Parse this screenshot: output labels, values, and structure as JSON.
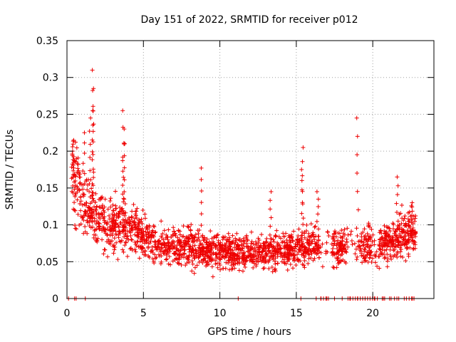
{
  "chart_data": {
    "type": "scatter",
    "title": "Day 151 of 2022, SRMTID for receiver p012",
    "xlabel": "GPS time / hours",
    "ylabel": "SRMTID / TECUs",
    "xlim": [
      0,
      24
    ],
    "ylim": [
      0,
      0.35
    ],
    "xticks": [
      0,
      5,
      10,
      15,
      20
    ],
    "yticks": [
      0,
      0.05,
      0.1,
      0.15,
      0.2,
      0.25,
      0.3,
      0.35
    ],
    "ytick_labels": [
      "0",
      "0.05",
      "0.1",
      "0.15",
      "0.2",
      "0.25",
      "0.3",
      "0.35"
    ],
    "grid": true,
    "marker": "+",
    "color": "#ee0000",
    "gap_hours": [
      [
        16.5,
        17.3
      ],
      [
        18.3,
        19.2
      ],
      [
        20.0,
        20.4
      ],
      [
        22.9,
        24.0
      ]
    ],
    "trend": [
      [
        0.3,
        0.18
      ],
      [
        0.6,
        0.16
      ],
      [
        1.0,
        0.13
      ],
      [
        1.5,
        0.12
      ],
      [
        2.0,
        0.11
      ],
      [
        3.0,
        0.1
      ],
      [
        4.0,
        0.095
      ],
      [
        5.0,
        0.085
      ],
      [
        6.0,
        0.075
      ],
      [
        7.0,
        0.07
      ],
      [
        8.0,
        0.07
      ],
      [
        9.0,
        0.068
      ],
      [
        10.0,
        0.066
      ],
      [
        11.0,
        0.063
      ],
      [
        12.0,
        0.063
      ],
      [
        13.0,
        0.063
      ],
      [
        14.0,
        0.062
      ],
      [
        15.0,
        0.068
      ],
      [
        16.0,
        0.075
      ],
      [
        17.5,
        0.072
      ],
      [
        19.5,
        0.07
      ],
      [
        21.0,
        0.075
      ],
      [
        22.5,
        0.09
      ]
    ],
    "spikes": [
      {
        "x": 1.7,
        "y": 0.31
      },
      {
        "x": 1.7,
        "y": 0.285
      },
      {
        "x": 1.7,
        "y": 0.255
      },
      {
        "x": 1.5,
        "y": 0.245
      },
      {
        "x": 3.7,
        "y": 0.255
      },
      {
        "x": 3.7,
        "y": 0.23
      },
      {
        "x": 3.8,
        "y": 0.21
      },
      {
        "x": 0.4,
        "y": 0.2
      },
      {
        "x": 1.1,
        "y": 0.225
      },
      {
        "x": 15.4,
        "y": 0.205
      },
      {
        "x": 15.4,
        "y": 0.175
      },
      {
        "x": 8.8,
        "y": 0.177
      },
      {
        "x": 19.0,
        "y": 0.245
      },
      {
        "x": 21.6,
        "y": 0.165
      },
      {
        "x": 16.4,
        "y": 0.145
      },
      {
        "x": 13.3,
        "y": 0.145
      },
      {
        "x": 22.6,
        "y": 0.13
      }
    ],
    "zero_points": [
      0.1,
      0.5,
      0.6,
      1.2,
      11.2,
      15.3,
      16.6,
      17.0,
      17.5,
      18.0,
      18.5,
      19.0,
      19.5,
      20.1,
      20.7,
      21.2,
      21.7,
      22.2,
      22.6
    ]
  }
}
